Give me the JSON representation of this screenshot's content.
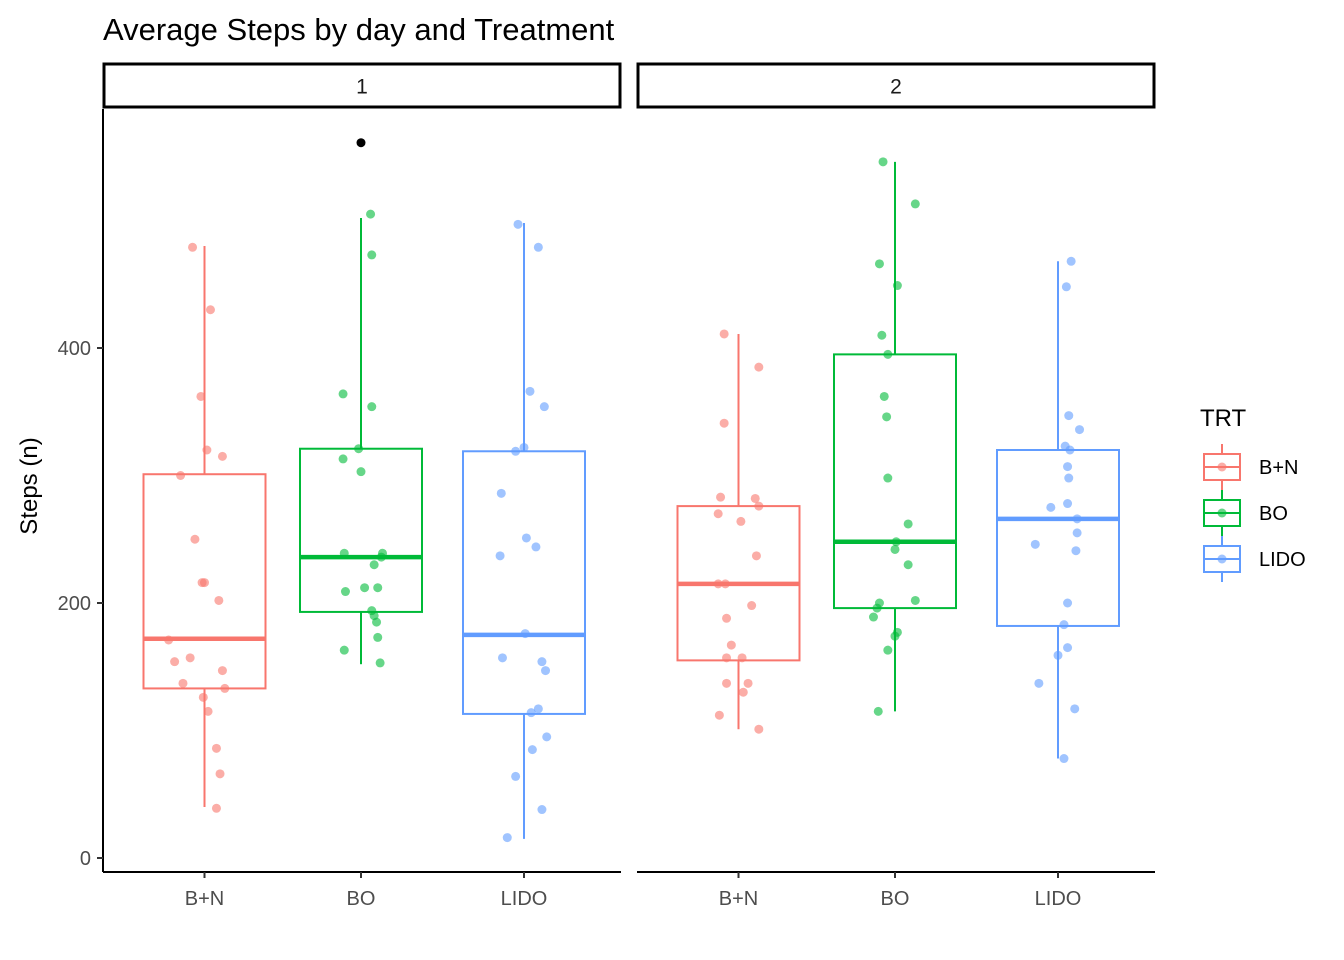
{
  "chart_data": {
    "type": "boxplot",
    "title": "Average Steps by day and Treatment",
    "xlabel": "",
    "ylabel": "Steps (n)",
    "ylim": [
      -10,
      580
    ],
    "yticks": [
      0,
      200,
      400
    ],
    "categories": [
      "B+N",
      "BO",
      "LIDO"
    ],
    "legend": {
      "title": "TRT",
      "position": "right",
      "entries": [
        "B+N",
        "BO",
        "LIDO"
      ]
    },
    "colors": {
      "B+N": "#F8766D",
      "BO": "#00BA38",
      "LIDO": "#619CFF"
    },
    "grid": false,
    "facets": [
      {
        "label": "1",
        "boxes": [
          {
            "trt": "B+N",
            "min": 40,
            "q1": 133,
            "median": 172,
            "q3": 301,
            "max": 480
          },
          {
            "trt": "BO",
            "min": 152,
            "q1": 193,
            "median": 236,
            "q3": 321,
            "max": 502
          },
          {
            "trt": "LIDO",
            "min": 15,
            "q1": 113,
            "median": 175,
            "q3": 319,
            "max": 498
          }
        ],
        "outliers": [
          {
            "trt": "BO",
            "y": 561
          }
        ],
        "points": [
          {
            "trt": "B+N",
            "x": -0.1,
            "y": 479
          },
          {
            "trt": "B+N",
            "x": 0.05,
            "y": 430
          },
          {
            "trt": "B+N",
            "x": -0.03,
            "y": 362
          },
          {
            "trt": "B+N",
            "x": 0.02,
            "y": 320
          },
          {
            "trt": "B+N",
            "x": 0.15,
            "y": 315
          },
          {
            "trt": "B+N",
            "x": -0.2,
            "y": 300
          },
          {
            "trt": "B+N",
            "x": -0.08,
            "y": 250
          },
          {
            "trt": "B+N",
            "x": -0.02,
            "y": 216
          },
          {
            "trt": "B+N",
            "x": 0.0,
            "y": 216
          },
          {
            "trt": "B+N",
            "x": 0.12,
            "y": 202
          },
          {
            "trt": "B+N",
            "x": -0.3,
            "y": 171
          },
          {
            "trt": "B+N",
            "x": -0.12,
            "y": 157
          },
          {
            "trt": "B+N",
            "x": -0.25,
            "y": 154
          },
          {
            "trt": "B+N",
            "x": 0.15,
            "y": 147
          },
          {
            "trt": "B+N",
            "x": -0.18,
            "y": 137
          },
          {
            "trt": "B+N",
            "x": 0.17,
            "y": 133
          },
          {
            "trt": "B+N",
            "x": -0.01,
            "y": 126
          },
          {
            "trt": "B+N",
            "x": 0.03,
            "y": 115
          },
          {
            "trt": "B+N",
            "x": 0.1,
            "y": 86
          },
          {
            "trt": "B+N",
            "x": 0.13,
            "y": 66
          },
          {
            "trt": "B+N",
            "x": 0.1,
            "y": 39
          },
          {
            "trt": "BO",
            "x": 0.08,
            "y": 505
          },
          {
            "trt": "BO",
            "x": 0.09,
            "y": 473
          },
          {
            "trt": "BO",
            "x": -0.15,
            "y": 364
          },
          {
            "trt": "BO",
            "x": 0.09,
            "y": 354
          },
          {
            "trt": "BO",
            "x": -0.02,
            "y": 321
          },
          {
            "trt": "BO",
            "x": -0.15,
            "y": 313
          },
          {
            "trt": "BO",
            "x": 0.0,
            "y": 303
          },
          {
            "trt": "BO",
            "x": -0.14,
            "y": 239
          },
          {
            "trt": "BO",
            "x": 0.17,
            "y": 236
          },
          {
            "trt": "BO",
            "x": 0.18,
            "y": 239
          },
          {
            "trt": "BO",
            "x": 0.11,
            "y": 230
          },
          {
            "trt": "BO",
            "x": 0.03,
            "y": 212
          },
          {
            "trt": "BO",
            "x": 0.14,
            "y": 212
          },
          {
            "trt": "BO",
            "x": -0.13,
            "y": 209
          },
          {
            "trt": "BO",
            "x": 0.09,
            "y": 194
          },
          {
            "trt": "BO",
            "x": 0.11,
            "y": 190
          },
          {
            "trt": "BO",
            "x": 0.13,
            "y": 185
          },
          {
            "trt": "BO",
            "x": 0.14,
            "y": 173
          },
          {
            "trt": "BO",
            "x": -0.14,
            "y": 163
          },
          {
            "trt": "BO",
            "x": 0.16,
            "y": 153
          },
          {
            "trt": "LIDO",
            "x": -0.05,
            "y": 497
          },
          {
            "trt": "LIDO",
            "x": 0.12,
            "y": 479
          },
          {
            "trt": "LIDO",
            "x": 0.05,
            "y": 366
          },
          {
            "trt": "LIDO",
            "x": 0.17,
            "y": 354
          },
          {
            "trt": "LIDO",
            "x": 0.0,
            "y": 322
          },
          {
            "trt": "LIDO",
            "x": -0.07,
            "y": 319
          },
          {
            "trt": "LIDO",
            "x": -0.19,
            "y": 286
          },
          {
            "trt": "LIDO",
            "x": 0.02,
            "y": 251
          },
          {
            "trt": "LIDO",
            "x": 0.1,
            "y": 244
          },
          {
            "trt": "LIDO",
            "x": -0.2,
            "y": 237
          },
          {
            "trt": "LIDO",
            "x": 0.01,
            "y": 176
          },
          {
            "trt": "LIDO",
            "x": -0.18,
            "y": 157
          },
          {
            "trt": "LIDO",
            "x": 0.15,
            "y": 154
          },
          {
            "trt": "LIDO",
            "x": 0.18,
            "y": 147
          },
          {
            "trt": "LIDO",
            "x": 0.12,
            "y": 117
          },
          {
            "trt": "LIDO",
            "x": 0.06,
            "y": 114
          },
          {
            "trt": "LIDO",
            "x": 0.19,
            "y": 95
          },
          {
            "trt": "LIDO",
            "x": 0.07,
            "y": 85
          },
          {
            "trt": "LIDO",
            "x": -0.07,
            "y": 64
          },
          {
            "trt": "LIDO",
            "x": 0.15,
            "y": 38
          },
          {
            "trt": "LIDO",
            "x": -0.14,
            "y": 16
          }
        ]
      },
      {
        "label": "2",
        "boxes": [
          {
            "trt": "B+N",
            "min": 101,
            "q1": 155,
            "median": 215,
            "q3": 276,
            "max": 411
          },
          {
            "trt": "BO",
            "min": 115,
            "q1": 196,
            "median": 248,
            "q3": 395,
            "max": 546
          },
          {
            "trt": "LIDO",
            "min": 78,
            "q1": 182,
            "median": 266,
            "q3": 320,
            "max": 468
          }
        ],
        "outliers": [],
        "points": [
          {
            "trt": "B+N",
            "x": -0.12,
            "y": 411
          },
          {
            "trt": "B+N",
            "x": 0.17,
            "y": 385
          },
          {
            "trt": "B+N",
            "x": -0.12,
            "y": 341
          },
          {
            "trt": "B+N",
            "x": -0.15,
            "y": 283
          },
          {
            "trt": "B+N",
            "x": 0.14,
            "y": 282
          },
          {
            "trt": "B+N",
            "x": -0.17,
            "y": 270
          },
          {
            "trt": "B+N",
            "x": 0.17,
            "y": 276
          },
          {
            "trt": "B+N",
            "x": 0.02,
            "y": 264
          },
          {
            "trt": "B+N",
            "x": 0.15,
            "y": 237
          },
          {
            "trt": "B+N",
            "x": -0.17,
            "y": 215
          },
          {
            "trt": "B+N",
            "x": -0.11,
            "y": 215
          },
          {
            "trt": "B+N",
            "x": 0.11,
            "y": 198
          },
          {
            "trt": "B+N",
            "x": -0.1,
            "y": 188
          },
          {
            "trt": "B+N",
            "x": -0.06,
            "y": 167
          },
          {
            "trt": "B+N",
            "x": -0.1,
            "y": 157
          },
          {
            "trt": "B+N",
            "x": 0.03,
            "y": 157
          },
          {
            "trt": "B+N",
            "x": -0.1,
            "y": 137
          },
          {
            "trt": "B+N",
            "x": 0.08,
            "y": 137
          },
          {
            "trt": "B+N",
            "x": 0.04,
            "y": 130
          },
          {
            "trt": "B+N",
            "x": -0.16,
            "y": 112
          },
          {
            "trt": "B+N",
            "x": 0.17,
            "y": 101
          },
          {
            "trt": "BO",
            "x": -0.1,
            "y": 546
          },
          {
            "trt": "BO",
            "x": 0.17,
            "y": 513
          },
          {
            "trt": "BO",
            "x": -0.13,
            "y": 466
          },
          {
            "trt": "BO",
            "x": 0.02,
            "y": 449
          },
          {
            "trt": "BO",
            "x": -0.11,
            "y": 410
          },
          {
            "trt": "BO",
            "x": -0.06,
            "y": 395
          },
          {
            "trt": "BO",
            "x": -0.09,
            "y": 362
          },
          {
            "trt": "BO",
            "x": -0.07,
            "y": 346
          },
          {
            "trt": "BO",
            "x": -0.06,
            "y": 298
          },
          {
            "trt": "BO",
            "x": 0.11,
            "y": 262
          },
          {
            "trt": "BO",
            "x": 0.01,
            "y": 248
          },
          {
            "trt": "BO",
            "x": 0.0,
            "y": 242
          },
          {
            "trt": "BO",
            "x": 0.11,
            "y": 230
          },
          {
            "trt": "BO",
            "x": 0.17,
            "y": 202
          },
          {
            "trt": "BO",
            "x": -0.13,
            "y": 200
          },
          {
            "trt": "BO",
            "x": -0.15,
            "y": 196
          },
          {
            "trt": "BO",
            "x": -0.18,
            "y": 189
          },
          {
            "trt": "BO",
            "x": 0.02,
            "y": 177
          },
          {
            "trt": "BO",
            "x": 0.0,
            "y": 174
          },
          {
            "trt": "BO",
            "x": -0.06,
            "y": 163
          },
          {
            "trt": "BO",
            "x": -0.14,
            "y": 115
          },
          {
            "trt": "LIDO",
            "x": 0.11,
            "y": 468
          },
          {
            "trt": "LIDO",
            "x": 0.07,
            "y": 448
          },
          {
            "trt": "LIDO",
            "x": 0.09,
            "y": 347
          },
          {
            "trt": "LIDO",
            "x": 0.18,
            "y": 336
          },
          {
            "trt": "LIDO",
            "x": 0.06,
            "y": 323
          },
          {
            "trt": "LIDO",
            "x": 0.1,
            "y": 320
          },
          {
            "trt": "LIDO",
            "x": 0.08,
            "y": 307
          },
          {
            "trt": "LIDO",
            "x": 0.09,
            "y": 298
          },
          {
            "trt": "LIDO",
            "x": 0.08,
            "y": 278
          },
          {
            "trt": "LIDO",
            "x": -0.06,
            "y": 275
          },
          {
            "trt": "LIDO",
            "x": 0.16,
            "y": 266
          },
          {
            "trt": "LIDO",
            "x": 0.16,
            "y": 255
          },
          {
            "trt": "LIDO",
            "x": -0.19,
            "y": 246
          },
          {
            "trt": "LIDO",
            "x": 0.15,
            "y": 241
          },
          {
            "trt": "LIDO",
            "x": 0.08,
            "y": 200
          },
          {
            "trt": "LIDO",
            "x": 0.05,
            "y": 183
          },
          {
            "trt": "LIDO",
            "x": 0.08,
            "y": 165
          },
          {
            "trt": "LIDO",
            "x": 0.0,
            "y": 159
          },
          {
            "trt": "LIDO",
            "x": -0.16,
            "y": 137
          },
          {
            "trt": "LIDO",
            "x": 0.14,
            "y": 117
          },
          {
            "trt": "LIDO",
            "x": 0.05,
            "y": 78
          }
        ]
      }
    ]
  }
}
